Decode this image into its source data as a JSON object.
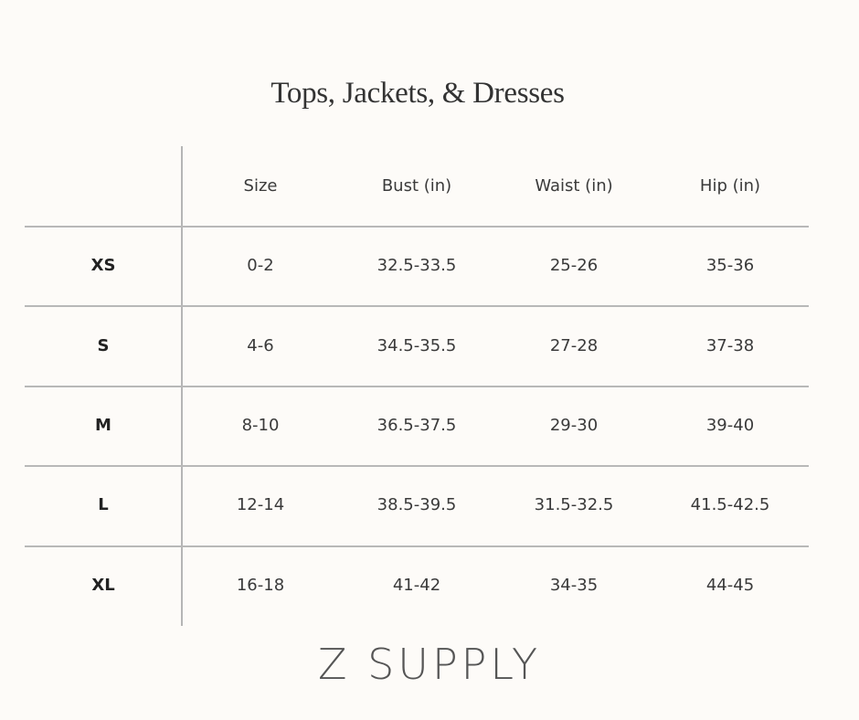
{
  "title": "Tops, Jackets, & Dresses",
  "table": {
    "headers": [
      "",
      "Size",
      "Bust (in)",
      "Waist (in)",
      "Hip (in)"
    ],
    "rows": [
      {
        "label": "XS",
        "size": "0-2",
        "bust": "32.5-33.5",
        "waist": "25-26",
        "hip": "35-36"
      },
      {
        "label": "S",
        "size": "4-6",
        "bust": "34.5-35.5",
        "waist": "27-28",
        "hip": "37-38"
      },
      {
        "label": "M",
        "size": "8-10",
        "bust": "36.5-37.5",
        "waist": "29-30",
        "hip": "39-40"
      },
      {
        "label": "L",
        "size": "12-14",
        "bust": "38.5-39.5",
        "waist": "31.5-32.5",
        "hip": "41.5-42.5"
      },
      {
        "label": "XL",
        "size": "16-18",
        "bust": "41-42",
        "waist": "34-35",
        "hip": "44-45"
      }
    ]
  },
  "brand": "Z SUPPLY",
  "colors": {
    "background": "#fdfbf8",
    "rule": "#b8b8b8",
    "text": "#3a3a3a"
  }
}
